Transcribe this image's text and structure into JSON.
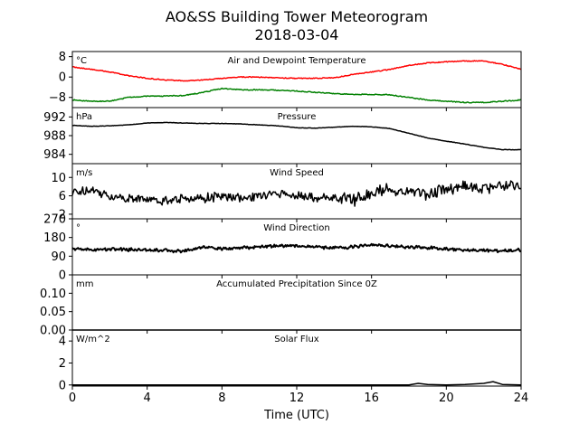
{
  "figure": {
    "title": "AO&SS Building Tower Meteorogram",
    "subtitle": "2018-03-04",
    "xlabel": "Time (UTC)"
  },
  "chart_data": {
    "type": "line",
    "title": "AO&SS Building Tower Meteorogram",
    "subtitle": "2018-03-04",
    "xlabel": "Time (UTC)",
    "xlim": [
      0,
      24
    ],
    "xticks": [
      0,
      4,
      8,
      12,
      16,
      20,
      24
    ],
    "xtick_labels": [
      "0",
      "4",
      "8",
      "12",
      "16",
      "20",
      "24"
    ],
    "panels": [
      {
        "id": "temp",
        "title": "Air and Dewpoint Temperature",
        "unit": "°C",
        "ylim": [
          -12,
          10
        ],
        "yticks": [
          -8,
          0,
          8
        ],
        "ytick_labels": [
          "−8",
          "0",
          "8"
        ],
        "grid": false,
        "series": [
          {
            "color": "#ff0000",
            "x": [
              0,
              1,
              2,
              3,
              4,
              5,
              6,
              7,
              8,
              9,
              10,
              11,
              12,
              13,
              14,
              15,
              16,
              17,
              18,
              19,
              20,
              21,
              22,
              23,
              24
            ],
            "values": [
              4,
              3,
              2,
              0.5,
              -0.5,
              -1.2,
              -1.5,
              -1.2,
              -0.5,
              0,
              0,
              -0.3,
              -0.5,
              -0.5,
              -0.3,
              1,
              2,
              3,
              4.5,
              5.5,
              6,
              6.3,
              6.3,
              5,
              3
            ]
          },
          {
            "color": "#008000",
            "x": [
              0,
              1,
              2,
              3,
              4,
              5,
              6,
              7,
              8,
              9,
              10,
              11,
              12,
              13,
              14,
              15,
              16,
              17,
              18,
              19,
              20,
              21,
              22,
              23,
              24
            ],
            "values": [
              -9,
              -9.5,
              -9.5,
              -8,
              -7.5,
              -7.5,
              -7.2,
              -6,
              -4.5,
              -5,
              -5,
              -5.2,
              -5.5,
              -6,
              -6.5,
              -6.8,
              -6.8,
              -7,
              -8,
              -9,
              -9.5,
              -10,
              -10,
              -9.5,
              -9
            ]
          }
        ]
      },
      {
        "id": "pressure",
        "title": "Pressure",
        "unit": "hPa",
        "ylim": [
          982,
          994
        ],
        "yticks": [
          984,
          988,
          992
        ],
        "ytick_labels": [
          "984",
          "988",
          "992"
        ],
        "grid": false,
        "series": [
          {
            "color": "#000000",
            "x": [
              0,
              1,
              2,
              3,
              4,
              5,
              6,
              7,
              8,
              9,
              10,
              11,
              12,
              13,
              14,
              15,
              16,
              17,
              18,
              19,
              20,
              21,
              22,
              23,
              24
            ],
            "values": [
              990.2,
              990,
              990.1,
              990.3,
              990.7,
              990.8,
              990.7,
              990.6,
              990.6,
              990.5,
              990.3,
              990.1,
              989.7,
              989.6,
              989.8,
              990,
              989.9,
              989.5,
              988.5,
              987.5,
              986.8,
              986.2,
              985.5,
              985,
              985
            ]
          }
        ]
      },
      {
        "id": "wind_speed",
        "title": "Wind Speed",
        "unit": "m/s",
        "ylim": [
          1,
          13
        ],
        "yticks": [
          2,
          6,
          10
        ],
        "ytick_labels": [
          "2",
          "6",
          "10"
        ],
        "grid": false,
        "series": [
          {
            "color": "#000000",
            "x": [
              0,
              1,
              2,
              3,
              4,
              5,
              6,
              7,
              8,
              9,
              10,
              11,
              12,
              13,
              14,
              15,
              16,
              17,
              18,
              19,
              20,
              21,
              22,
              23,
              24
            ],
            "values": [
              6.5,
              7.5,
              6,
              5.5,
              5.2,
              5,
              5.5,
              5.5,
              5.8,
              5.5,
              5.8,
              6.5,
              6,
              5.5,
              5.5,
              5,
              6.5,
              7.5,
              7,
              6.5,
              7.5,
              8,
              7.5,
              8.5,
              8.5
            ]
          }
        ]
      },
      {
        "id": "wind_dir",
        "title": "Wind Direction",
        "unit": "°",
        "ylim": [
          0,
          270
        ],
        "yticks": [
          0,
          90,
          180,
          270
        ],
        "ytick_labels": [
          "0",
          "90",
          "180",
          "270"
        ],
        "grid": false,
        "series": [
          {
            "color": "#000000",
            "x": [
              0,
              1,
              2,
              3,
              4,
              5,
              6,
              7,
              8,
              9,
              10,
              11,
              12,
              13,
              14,
              15,
              16,
              17,
              18,
              19,
              20,
              21,
              22,
              23,
              24
            ],
            "values": [
              125,
              120,
              125,
              122,
              120,
              118,
              115,
              135,
              125,
              130,
              135,
              140,
              140,
              135,
              130,
              135,
              145,
              140,
              135,
              130,
              125,
              120,
              118,
              115,
              120
            ]
          }
        ]
      },
      {
        "id": "precip",
        "title": "Accumulated Precipitation Since 0Z",
        "unit": "mm",
        "ylim": [
          0,
          0.15
        ],
        "yticks": [
          0,
          0.05,
          0.1
        ],
        "ytick_labels": [
          "0.00",
          "0.05",
          "0.10"
        ],
        "grid": false,
        "series": [
          {
            "color": "#000000",
            "x": [
              0,
              24
            ],
            "values": [
              0,
              0
            ]
          }
        ]
      },
      {
        "id": "solar",
        "title": "Solar Flux",
        "unit": "W/m^2",
        "ylim": [
          -0.1,
          5
        ],
        "yticks": [
          0,
          2,
          4
        ],
        "ytick_labels": [
          "0",
          "2",
          "4"
        ],
        "grid": false,
        "series": [
          {
            "color": "#000000",
            "x": [
              0,
              18,
              18.5,
              19,
              20,
              21,
              22,
              22.5,
              23,
              24
            ],
            "values": [
              0,
              0,
              0.15,
              0.05,
              0,
              0.05,
              0.15,
              0.3,
              0.05,
              0
            ]
          }
        ]
      }
    ]
  }
}
